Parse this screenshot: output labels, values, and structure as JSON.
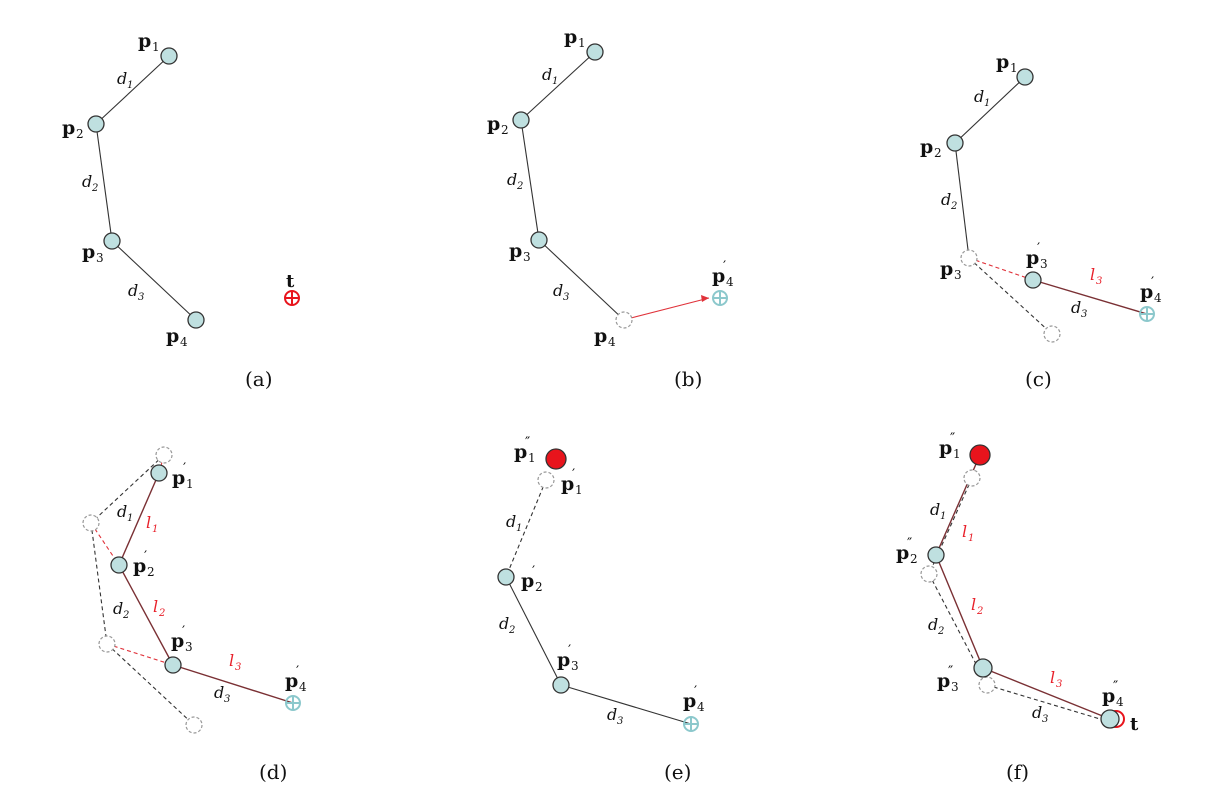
{
  "captions": [
    "(a)",
    "(b)",
    "(c)",
    "(d)",
    "(e)",
    "(f)"
  ],
  "labels": {
    "p1": "p",
    "p2": "p",
    "p3": "p",
    "p4": "p",
    "sub1": "1",
    "sub2": "2",
    "sub3": "3",
    "sub4": "4",
    "prime": "′",
    "dprime": "″",
    "d1": "d",
    "d2": "d",
    "d3": "d",
    "l": "l",
    "t": "t"
  },
  "colors": {
    "node_fill": "#bfe0e0",
    "target_red": "#e8141c",
    "target_cyan": "#8cc8cc",
    "line": "#333333"
  },
  "icons": [
    "target-crosshair-icon"
  ]
}
